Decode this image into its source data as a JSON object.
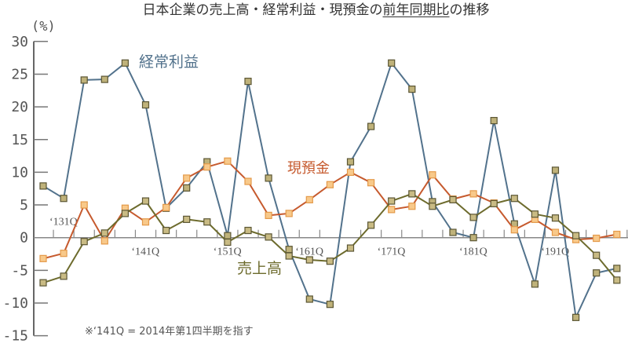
{
  "title": {
    "prefix": "日本企業の売上高・経常利益・現預金の",
    "underlined": "前年同期比",
    "suffix": "の推移"
  },
  "footnote": "※‘141Q = 2014年第1四半期を指す",
  "chart_data": {
    "type": "line",
    "title": "日本企業の売上高・経常利益・現預金の前年同期比の推移",
    "xlabel": "",
    "ylabel": "(%)",
    "ylim": [
      -15,
      30
    ],
    "yticks": [
      30,
      25,
      20,
      15,
      10,
      5,
      0,
      -5,
      -10,
      -15
    ],
    "grid": false,
    "legend": "inline labels",
    "x": [
      "2013Q1",
      "2013Q2",
      "2013Q3",
      "2013Q4",
      "2014Q1",
      "2014Q2",
      "2014Q3",
      "2014Q4",
      "2015Q1",
      "2015Q2",
      "2015Q3",
      "2015Q4",
      "2016Q1",
      "2016Q2",
      "2016Q3",
      "2016Q4",
      "2017Q1",
      "2017Q2",
      "2017Q3",
      "2017Q4",
      "2018Q1",
      "2018Q2",
      "2018Q3",
      "2018Q4",
      "2019Q1",
      "2019Q2",
      "2019Q3",
      "2019Q4",
      "2020Q1"
    ],
    "xtick_labels": [
      {
        "index": 0,
        "label": "‘131Q",
        "position": "above"
      },
      {
        "index": 4,
        "label": "‘141Q",
        "position": "below"
      },
      {
        "index": 8,
        "label": "‘151Q",
        "position": "below"
      },
      {
        "index": 12,
        "label": "‘161Q",
        "position": "below"
      },
      {
        "index": 16,
        "label": "‘171Q",
        "position": "below"
      },
      {
        "index": 20,
        "label": "‘181Q",
        "position": "below"
      },
      {
        "index": 24,
        "label": "‘191Q",
        "position": "below"
      }
    ],
    "series": [
      {
        "id": "ordinary-profit",
        "name": "経常利益",
        "color": "#52728c",
        "marker_fill": "#bfb27a",
        "marker_stroke": "#5b5634",
        "values": [
          7.9,
          6.0,
          24.1,
          24.2,
          26.7,
          20.3,
          4.5,
          7.6,
          11.6,
          0.3,
          23.9,
          9.1,
          -1.8,
          -9.4,
          -10.2,
          11.6,
          17.0,
          26.7,
          22.7,
          5.5,
          0.8,
          0.0,
          17.9,
          2.1,
          -7.1,
          10.3,
          -12.2,
          -5.4,
          -4.7
        ]
      },
      {
        "id": "cash-deposits",
        "name": "現預金",
        "color": "#c65a2e",
        "marker_fill": "#f8c98a",
        "marker_stroke": "#e49a4a",
        "values": [
          -3.2,
          -2.4,
          5.0,
          -0.5,
          4.5,
          2.4,
          4.6,
          9.1,
          10.8,
          11.7,
          8.6,
          3.4,
          3.7,
          5.8,
          8.1,
          10.0,
          8.4,
          4.3,
          4.8,
          9.6,
          5.9,
          6.7,
          5.3,
          1.2,
          2.8,
          0.8,
          -0.3,
          -0.1,
          0.5
        ]
      },
      {
        "id": "sales",
        "name": "売上高",
        "color": "#6d6b2d",
        "marker_fill": "#c9bb84",
        "marker_stroke": "#5b5634",
        "values": [
          -6.9,
          -5.9,
          -0.6,
          0.7,
          3.7,
          5.6,
          1.1,
          2.8,
          2.4,
          -0.7,
          1.1,
          0.1,
          -2.8,
          -3.4,
          -3.6,
          -1.6,
          1.9,
          5.6,
          6.7,
          4.8,
          5.8,
          3.1,
          5.2,
          6.0,
          3.6,
          3.0,
          0.3,
          -2.7,
          -6.5
        ]
      }
    ]
  }
}
